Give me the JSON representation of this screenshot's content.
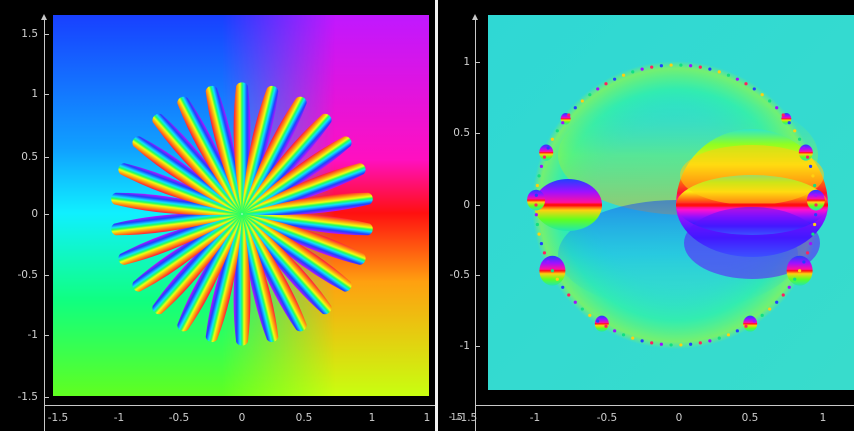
{
  "left_plot": {
    "x_ticks": [
      "-1.5",
      "-1",
      "-0.5",
      "0",
      "0.5",
      "1",
      "1"
    ],
    "y_ticks": [
      "1.5",
      "1",
      "0.5",
      "0",
      "-0.5",
      "-1",
      "-1.5"
    ],
    "petal_count": 26
  },
  "right_plot": {
    "x_ticks": [
      "-1.5",
      "-1",
      "-0.5",
      "0",
      "0.5",
      "1"
    ],
    "x_origin_label": "-1.5",
    "y_ticks": [
      "1",
      "0.5",
      "0",
      "-0.5",
      "-1"
    ]
  },
  "colors": {
    "background": "#000000",
    "axis": "#c8c8c8",
    "label": "#cfcfcf",
    "cyan_field": "#34d9d0",
    "divider": "#f2f2f2"
  }
}
